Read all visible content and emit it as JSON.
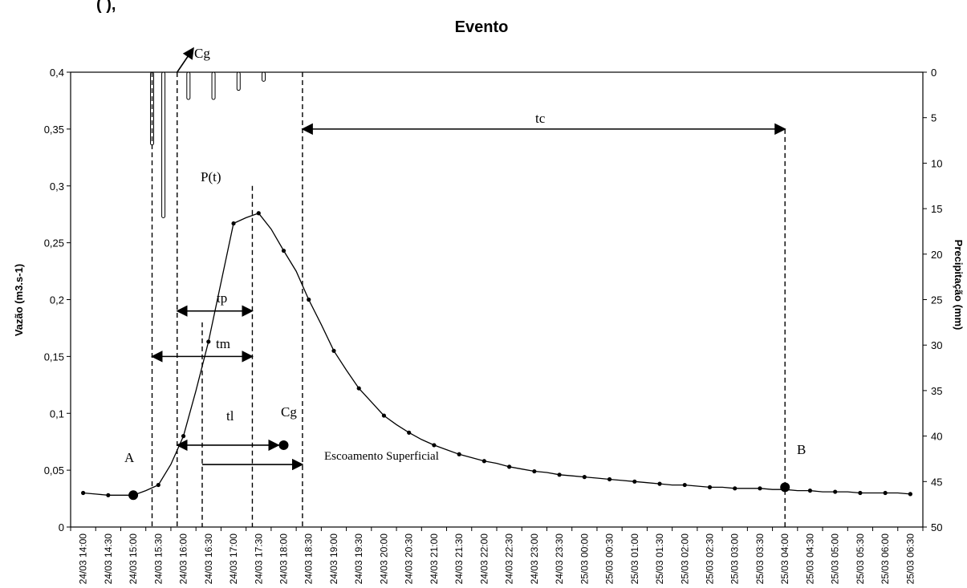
{
  "chart_data": {
    "type": "line",
    "title": "Evento",
    "top_clipped_text": "(                    ), ",
    "ylabel_left": "Vazão (m3.s-1)",
    "ylabel_right": "Precipitação (mm)",
    "ylim_left": [
      0,
      0.4
    ],
    "ylim_right_reversed": [
      0,
      50
    ],
    "yticks_left": [
      "0",
      "0,05",
      "0,1",
      "0,15",
      "0,2",
      "0,25",
      "0,3",
      "0,35",
      "0,4"
    ],
    "yticks_right": [
      "0",
      "5",
      "10",
      "15",
      "20",
      "25",
      "30",
      "35",
      "40",
      "45",
      "50"
    ],
    "categories": [
      "24/03 14:00",
      "24/03 14:30",
      "24/03 15:00",
      "24/03 15:30",
      "24/03 16:00",
      "24/03 16:30",
      "24/03 17:00",
      "24/03 17:30",
      "24/03 18:00",
      "24/03 18:30",
      "24/03 19:00",
      "24/03 19:30",
      "24/03 20:00",
      "24/03 20:30",
      "24/03 21:00",
      "24/03 21:30",
      "24/03 22:00",
      "24/03 22:30",
      "24/03 23:00",
      "24/03 23:30",
      "25/03 00:00",
      "25/03 00:30",
      "25/03 01:00",
      "25/03 01:30",
      "25/03 02:00",
      "25/03 02:30",
      "25/03 03:00",
      "25/03 03:30",
      "25/03 04:00",
      "25/03 04:30",
      "25/03 05:00",
      "25/03 05:30",
      "25/03 06:00",
      "25/03 06:30"
    ],
    "series": [
      {
        "name": "Vazão",
        "x": [
          0,
          0.5,
          1,
          1.5,
          2,
          2.5,
          3,
          3.5,
          4,
          4.5,
          5,
          5.5,
          6,
          6.5,
          7,
          7.5,
          8,
          8.5,
          9,
          9.5,
          10,
          10.5,
          11,
          11.5,
          12,
          12.5,
          13,
          13.5,
          14,
          14.5,
          15,
          15.5,
          16,
          16.5,
          17,
          17.5,
          18,
          18.5,
          19,
          19.5,
          20,
          20.5,
          21,
          21.5,
          22,
          22.5,
          23,
          23.5,
          24,
          24.5,
          25,
          25.5,
          26,
          26.5,
          27,
          27.5,
          28,
          28.5,
          29,
          29.5,
          30,
          30.5,
          31,
          31.5,
          32,
          32.5,
          33
        ],
        "values": [
          0.03,
          0.029,
          0.028,
          0.028,
          0.028,
          0.032,
          0.037,
          0.055,
          0.08,
          0.12,
          0.163,
          0.215,
          0.267,
          0.272,
          0.276,
          0.262,
          0.243,
          0.225,
          0.2,
          0.178,
          0.155,
          0.138,
          0.122,
          0.11,
          0.098,
          0.09,
          0.083,
          0.077,
          0.072,
          0.068,
          0.064,
          0.061,
          0.058,
          0.056,
          0.053,
          0.051,
          0.049,
          0.048,
          0.046,
          0.045,
          0.044,
          0.043,
          0.042,
          0.041,
          0.04,
          0.039,
          0.038,
          0.037,
          0.037,
          0.036,
          0.035,
          0.035,
          0.034,
          0.034,
          0.034,
          0.033,
          0.033,
          0.032,
          0.032,
          0.031,
          0.031,
          0.031,
          0.03,
          0.03,
          0.03,
          0.03,
          0.029
        ]
      },
      {
        "name": "Precipitação",
        "axis": "right",
        "x": [
          2.75,
          3.2,
          4.2,
          5.2,
          6.2,
          7.2
        ],
        "values": [
          8.0,
          16.0,
          3.0,
          3.0,
          2.0,
          1.0
        ]
      }
    ],
    "points": [
      {
        "label": "A",
        "x": 2.0,
        "y": 0.028
      },
      {
        "label": "B",
        "x": 28.0,
        "y": 0.035
      },
      {
        "label": "Cg",
        "x": 8.0,
        "y": 0.072
      }
    ],
    "vlines_x": [
      2.75,
      3.75,
      4.75,
      6.75,
      8.75,
      28.0
    ],
    "annotations": {
      "cg_top": "Cg",
      "cg_point": "Cg",
      "pt": "P(t)",
      "tp": "tp",
      "tm": "tm",
      "tl": "tl",
      "tc": "tc",
      "escoamento": "Escoamento Superficial",
      "a": "A",
      "b": "B"
    }
  }
}
